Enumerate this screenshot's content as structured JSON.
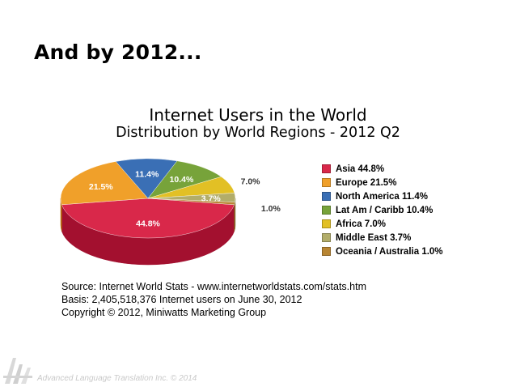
{
  "slide": {
    "heading": "And by 2012..."
  },
  "chart_data": {
    "type": "pie",
    "title": "Internet Users in the World",
    "subtitle": "Distribution by World Regions - 2012 Q2",
    "slices": [
      {
        "name": "Asia",
        "value": 44.8,
        "label": "44.8%",
        "legend": "Asia  44.8%",
        "color": "#d9284a",
        "side": "#a3102f"
      },
      {
        "name": "Europe",
        "value": 21.5,
        "label": "21.5%",
        "legend": "Europe  21.5%",
        "color": "#f0a02a",
        "side": "#b86e10"
      },
      {
        "name": "North America",
        "value": 11.4,
        "label": "11.4%",
        "legend": "North America  11.4%",
        "color": "#3a6fb5",
        "side": "#24508a"
      },
      {
        "name": "Lat Am / Caribb",
        "value": 10.4,
        "label": "10.4%",
        "legend": "Lat Am / Caribb  10.4%",
        "color": "#77a33a",
        "side": "#557a24"
      },
      {
        "name": "Africa",
        "value": 7.0,
        "label": "7.0%",
        "legend": "Africa  7.0%",
        "color": "#e2c025",
        "side": "#a88b10"
      },
      {
        "name": "Middle East",
        "value": 3.7,
        "label": "3.7%",
        "legend": "Middle East  3.7%",
        "color": "#b2ad6a",
        "side": "#83804a"
      },
      {
        "name": "Oceania / Australia",
        "value": 1.0,
        "label": "1.0%",
        "legend": "Oceania / Australia  1.0%",
        "color": "#b88532",
        "side": "#8a611e"
      }
    ],
    "legend_position": "right"
  },
  "source": {
    "line1": "Source: Internet World Stats -  www.internetworldstats.com/stats.htm",
    "line2": "Basis: 2,405,518,376 Internet users on June 30, 2012",
    "line3": "Copyright © 2012, Miniwatts Marketing Group"
  },
  "footer": {
    "text": "Advanced Language Translation Inc.  © 2014",
    "logo_icon": "alt-logo-icon"
  }
}
